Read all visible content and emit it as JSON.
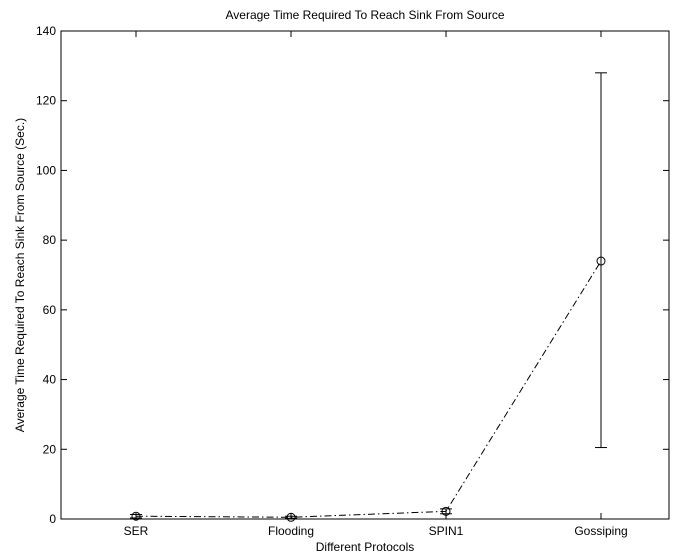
{
  "chart_data": {
    "type": "line",
    "title": "Average Time Required To Reach Sink From Source",
    "xlabel": "Different Protocols",
    "ylabel": "Average Time Required To Reach Sink From Source (Sec.)",
    "categories": [
      "SER",
      "Flooding",
      "SPIN1",
      "Gossiping"
    ],
    "ylim": [
      0,
      140
    ],
    "yticks": [
      0,
      20,
      40,
      60,
      80,
      100,
      120,
      140
    ],
    "ytick_labels": [
      "0",
      "20",
      "40",
      "60",
      "80",
      "100",
      "120",
      "140"
    ],
    "grid": false,
    "series": [
      {
        "values": [
          0.8,
          0.5,
          2.2,
          74
        ],
        "error_low": [
          0.3,
          0.2,
          1.5,
          20.5
        ],
        "error_high": [
          1.3,
          0.8,
          2.9,
          128
        ],
        "line_style": "dash-dot",
        "marker": "circle",
        "color": "#000000"
      }
    ]
  }
}
